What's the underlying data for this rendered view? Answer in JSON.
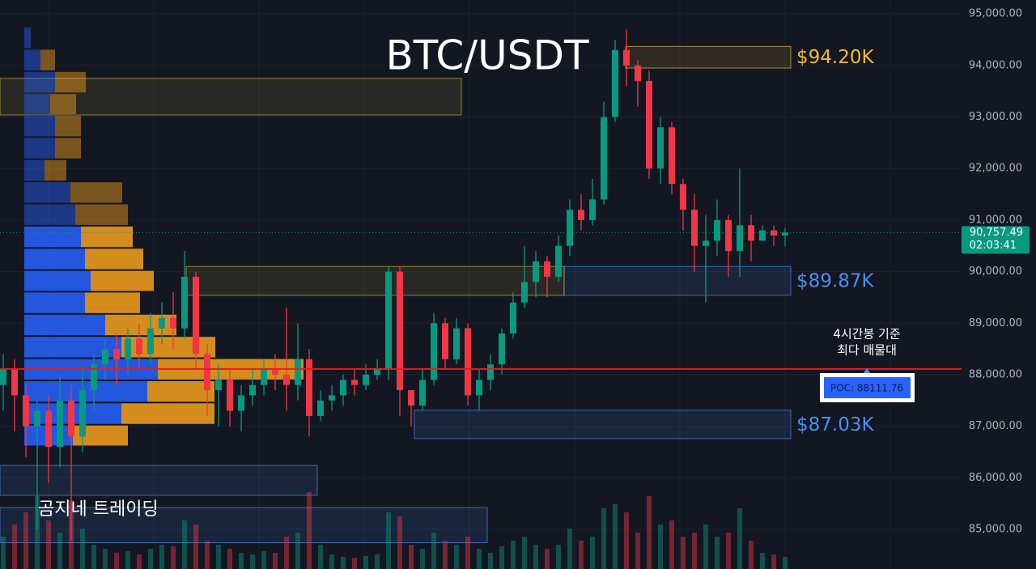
{
  "chart_data": {
    "type": "candlestick",
    "title": "BTC/USDT",
    "watermark": "곰지네 트레이딩",
    "ylim": [
      84230,
      95270
    ],
    "yticks": [
      {
        "value": 85000,
        "label": "85,000.00"
      },
      {
        "value": 86000,
        "label": "86,000.00"
      },
      {
        "value": 87000,
        "label": "87,000.00"
      },
      {
        "value": 88000,
        "label": "88,000.00"
      },
      {
        "value": 89000,
        "label": "89,000.00"
      },
      {
        "value": 90000,
        "label": "90,000.00"
      },
      {
        "value": 91000,
        "label": "91,000.00"
      },
      {
        "value": 92000,
        "label": "92,000.00"
      },
      {
        "value": 93000,
        "label": "93,000.00"
      },
      {
        "value": 94000,
        "label": "94,000.00"
      },
      {
        "value": 95000,
        "label": "95,000.00"
      }
    ],
    "grid": true,
    "up_color": "#089981",
    "down_color": "#f23645",
    "candles": {
      "open": [
        87800,
        88100,
        87600,
        87000,
        87300,
        86600,
        87500,
        86800,
        87700,
        88200,
        88500,
        88300,
        88700,
        88400,
        88900,
        89100,
        88900,
        89900,
        88400,
        87700,
        87900,
        87300,
        87600,
        87800,
        88100,
        88000,
        87800,
        88300,
        87200,
        87500,
        87600,
        87900,
        87800,
        88000,
        88100,
        90000,
        87700,
        87400,
        87900,
        89000,
        88300,
        88900,
        87600,
        87900,
        88200,
        88800,
        89400,
        89800,
        90200,
        89900,
        90500,
        91200,
        91000,
        91400,
        93000,
        94300,
        94000,
        93700,
        92000,
        92800,
        91700,
        91200,
        90500,
        90600,
        91000,
        90400,
        90900,
        90600,
        90800,
        90700
      ],
      "high": [
        88400,
        88300,
        87800,
        87500,
        87600,
        88000,
        87800,
        88100,
        88400,
        88700,
        88800,
        88900,
        89000,
        89200,
        89400,
        89600,
        90400,
        90000,
        88600,
        88200,
        88100,
        87800,
        88100,
        88300,
        88400,
        89300,
        89000,
        88500,
        87700,
        87800,
        88000,
        88100,
        88200,
        88300,
        90100,
        90100,
        87700,
        88100,
        89200,
        89100,
        89100,
        89000,
        88100,
        88400,
        88900,
        89600,
        90500,
        90400,
        90300,
        90700,
        91400,
        91500,
        91800,
        93300,
        94500,
        94700,
        94100,
        93900,
        93000,
        92900,
        91800,
        91500,
        91100,
        91400,
        91100,
        92000,
        91100,
        90900,
        90900,
        90850
      ],
      "low": [
        87300,
        86900,
        86400,
        85000,
        85900,
        86200,
        84800,
        86500,
        87300,
        87900,
        87800,
        88000,
        88100,
        88200,
        88600,
        88500,
        88700,
        88100,
        87200,
        87000,
        87000,
        86900,
        87400,
        87600,
        87700,
        87300,
        87500,
        86800,
        87100,
        87300,
        87400,
        87600,
        87700,
        87900,
        87900,
        87200,
        87000,
        87300,
        87800,
        88100,
        88200,
        87400,
        87300,
        87700,
        88000,
        88700,
        89300,
        89500,
        89500,
        89800,
        90300,
        90800,
        90900,
        91300,
        92900,
        93600,
        93200,
        91800,
        91700,
        91500,
        90800,
        90000,
        89400,
        90300,
        89900,
        89900,
        90200,
        90600,
        90500,
        90500
      ],
      "close": [
        88100,
        87600,
        87000,
        87300,
        86600,
        87500,
        86800,
        87700,
        88200,
        88500,
        88300,
        88700,
        88400,
        88900,
        89100,
        88900,
        89900,
        88400,
        87700,
        87900,
        87300,
        87600,
        87800,
        88100,
        88000,
        87800,
        88300,
        87200,
        87500,
        87600,
        87900,
        87800,
        88000,
        88100,
        90000,
        87700,
        87400,
        87900,
        89000,
        88300,
        88900,
        87600,
        87900,
        88200,
        88800,
        89400,
        89800,
        90200,
        89900,
        90500,
        91200,
        91000,
        91400,
        93000,
        94300,
        94000,
        93700,
        92000,
        92800,
        91700,
        91200,
        90500,
        90600,
        91000,
        90400,
        90900,
        90600,
        90800,
        90700,
        90757.49
      ],
      "volume": [
        40,
        55,
        70,
        90,
        60,
        45,
        85,
        50,
        30,
        25,
        20,
        22,
        18,
        25,
        30,
        28,
        60,
        55,
        35,
        30,
        25,
        20,
        18,
        22,
        20,
        40,
        45,
        95,
        30,
        18,
        15,
        14,
        16,
        18,
        70,
        65,
        30,
        25,
        45,
        35,
        30,
        40,
        25,
        20,
        28,
        35,
        40,
        30,
        25,
        30,
        50,
        35,
        40,
        75,
        80,
        70,
        45,
        90,
        55,
        60,
        40,
        45,
        55,
        40,
        45,
        75,
        35,
        20,
        18,
        15
      ]
    },
    "volume_profile": {
      "bin_edges": [
        94750,
        94320,
        93890,
        93460,
        93040,
        92610,
        92180,
        91750,
        91320,
        90890,
        90460,
        90030,
        89610,
        89180,
        88750,
        88320,
        87890,
        87460,
        87030,
        86610
      ],
      "buy": [
        8,
        20,
        38,
        32,
        38,
        38,
        25,
        57,
        63,
        70,
        75,
        82,
        75,
        100,
        120,
        165,
        152,
        120,
        60
      ],
      "sell": [
        0,
        18,
        38,
        32,
        32,
        32,
        27,
        64,
        65,
        64,
        72,
        78,
        68,
        88,
        116,
        180,
        83,
        115,
        68
      ]
    },
    "zones": [
      {
        "range": [
          93950,
          94370
        ],
        "label": "$94.20K",
        "color": "#f5b82e"
      },
      {
        "range": [
          89540,
          90100
        ],
        "label": "$89.87K",
        "color": "#4a8ff0"
      },
      {
        "range": [
          86760,
          87310
        ],
        "label": "$87.03K",
        "color": "#4a8ff0"
      },
      {
        "range": [
          89540,
          90100
        ],
        "color": "#c9b037"
      },
      {
        "range": [
          93040,
          93750
        ],
        "color": "#c9b037"
      },
      {
        "range": [
          85660,
          86240
        ],
        "color": "#4a8ff0"
      },
      {
        "range": [
          84740,
          85420
        ],
        "color": "#4a8ff0"
      }
    ],
    "poc": {
      "value": 88111.76,
      "label": "POC: 88111.76"
    },
    "poc_annotation": [
      "4시간봉 기준",
      "최다 매물대"
    ],
    "last_price": {
      "value": 90757.49,
      "label": "90,757.49"
    },
    "countdown": "02:03:41"
  }
}
